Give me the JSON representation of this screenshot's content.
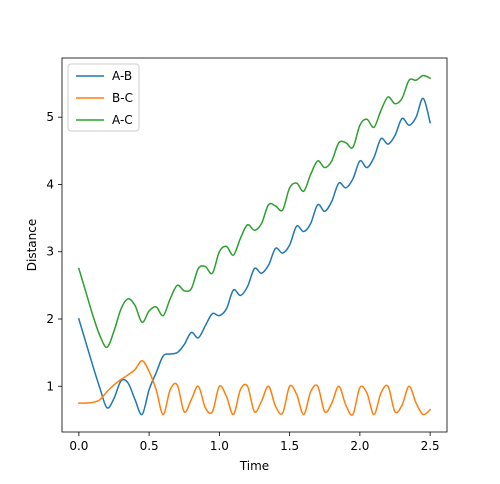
{
  "chart_data": {
    "type": "line",
    "title": "",
    "xlabel": "Time",
    "ylabel": "Distance",
    "xlim": [
      -0.12,
      2.62
    ],
    "ylim": [
      0.32,
      5.88
    ],
    "xticks": [
      0.0,
      0.5,
      1.0,
      1.5,
      2.0,
      2.5
    ],
    "xtick_labels": [
      "0.0",
      "0.5",
      "1.0",
      "1.5",
      "2.0",
      "2.5"
    ],
    "yticks": [
      1,
      2,
      3,
      4,
      5
    ],
    "ytick_labels": [
      "1",
      "2",
      "3",
      "4",
      "5"
    ],
    "grid": false,
    "legend": {
      "position": "top-left"
    },
    "series": [
      {
        "name": "A-B",
        "color": "#1f77b4",
        "points": [
          [
            0.0,
            2.0
          ],
          [
            0.05,
            1.65
          ],
          [
            0.1,
            1.3
          ],
          [
            0.15,
            0.97
          ],
          [
            0.2,
            0.68
          ],
          [
            0.25,
            0.82
          ],
          [
            0.3,
            1.08
          ],
          [
            0.35,
            1.05
          ],
          [
            0.4,
            0.8
          ],
          [
            0.45,
            0.58
          ],
          [
            0.5,
            0.95
          ],
          [
            0.55,
            1.2
          ],
          [
            0.6,
            1.45
          ],
          [
            0.65,
            1.48
          ],
          [
            0.7,
            1.5
          ],
          [
            0.75,
            1.62
          ],
          [
            0.8,
            1.8
          ],
          [
            0.85,
            1.72
          ],
          [
            0.9,
            1.9
          ],
          [
            0.95,
            2.08
          ],
          [
            1.0,
            2.05
          ],
          [
            1.05,
            2.15
          ],
          [
            1.1,
            2.43
          ],
          [
            1.15,
            2.35
          ],
          [
            1.2,
            2.48
          ],
          [
            1.25,
            2.75
          ],
          [
            1.3,
            2.68
          ],
          [
            1.35,
            2.8
          ],
          [
            1.4,
            3.05
          ],
          [
            1.45,
            2.98
          ],
          [
            1.5,
            3.1
          ],
          [
            1.55,
            3.38
          ],
          [
            1.6,
            3.3
          ],
          [
            1.65,
            3.42
          ],
          [
            1.7,
            3.7
          ],
          [
            1.75,
            3.6
          ],
          [
            1.8,
            3.75
          ],
          [
            1.85,
            4.02
          ],
          [
            1.9,
            3.95
          ],
          [
            1.95,
            4.08
          ],
          [
            2.0,
            4.35
          ],
          [
            2.05,
            4.25
          ],
          [
            2.1,
            4.4
          ],
          [
            2.15,
            4.68
          ],
          [
            2.2,
            4.6
          ],
          [
            2.25,
            4.73
          ],
          [
            2.3,
            4.98
          ],
          [
            2.35,
            4.88
          ],
          [
            2.4,
            5.0
          ],
          [
            2.45,
            5.28
          ],
          [
            2.5,
            4.92
          ]
        ]
      },
      {
        "name": "B-C",
        "color": "#ff7f0e",
        "points": [
          [
            0.0,
            0.75
          ],
          [
            0.05,
            0.75
          ],
          [
            0.1,
            0.76
          ],
          [
            0.15,
            0.8
          ],
          [
            0.2,
            0.92
          ],
          [
            0.25,
            1.02
          ],
          [
            0.3,
            1.1
          ],
          [
            0.35,
            1.17
          ],
          [
            0.4,
            1.25
          ],
          [
            0.45,
            1.38
          ],
          [
            0.5,
            1.22
          ],
          [
            0.55,
            0.95
          ],
          [
            0.6,
            0.58
          ],
          [
            0.65,
            0.95
          ],
          [
            0.7,
            1.02
          ],
          [
            0.75,
            0.62
          ],
          [
            0.8,
            0.8
          ],
          [
            0.85,
            1.0
          ],
          [
            0.9,
            0.68
          ],
          [
            0.95,
            0.62
          ],
          [
            1.0,
            1.0
          ],
          [
            1.05,
            0.85
          ],
          [
            1.1,
            0.58
          ],
          [
            1.15,
            0.95
          ],
          [
            1.2,
            1.0
          ],
          [
            1.25,
            0.62
          ],
          [
            1.3,
            0.78
          ],
          [
            1.35,
            1.0
          ],
          [
            1.4,
            0.7
          ],
          [
            1.45,
            0.6
          ],
          [
            1.5,
            1.0
          ],
          [
            1.55,
            0.88
          ],
          [
            1.6,
            0.58
          ],
          [
            1.65,
            0.92
          ],
          [
            1.7,
            1.0
          ],
          [
            1.75,
            0.62
          ],
          [
            1.8,
            0.75
          ],
          [
            1.85,
            1.0
          ],
          [
            1.9,
            0.72
          ],
          [
            1.95,
            0.58
          ],
          [
            2.0,
            0.98
          ],
          [
            2.05,
            0.9
          ],
          [
            2.1,
            0.58
          ],
          [
            2.15,
            0.9
          ],
          [
            2.2,
            1.0
          ],
          [
            2.25,
            0.62
          ],
          [
            2.3,
            0.72
          ],
          [
            2.35,
            1.0
          ],
          [
            2.4,
            0.75
          ],
          [
            2.45,
            0.58
          ],
          [
            2.5,
            0.65
          ]
        ]
      },
      {
        "name": "A-C",
        "color": "#2ca02c",
        "points": [
          [
            0.0,
            2.75
          ],
          [
            0.05,
            2.4
          ],
          [
            0.1,
            2.05
          ],
          [
            0.15,
            1.75
          ],
          [
            0.2,
            1.58
          ],
          [
            0.25,
            1.82
          ],
          [
            0.3,
            2.15
          ],
          [
            0.35,
            2.3
          ],
          [
            0.4,
            2.2
          ],
          [
            0.45,
            1.95
          ],
          [
            0.5,
            2.12
          ],
          [
            0.55,
            2.18
          ],
          [
            0.6,
            2.05
          ],
          [
            0.65,
            2.3
          ],
          [
            0.7,
            2.5
          ],
          [
            0.75,
            2.42
          ],
          [
            0.8,
            2.45
          ],
          [
            0.85,
            2.75
          ],
          [
            0.9,
            2.78
          ],
          [
            0.95,
            2.68
          ],
          [
            1.0,
            3.0
          ],
          [
            1.05,
            3.08
          ],
          [
            1.1,
            2.95
          ],
          [
            1.15,
            3.2
          ],
          [
            1.2,
            3.4
          ],
          [
            1.25,
            3.32
          ],
          [
            1.3,
            3.42
          ],
          [
            1.35,
            3.7
          ],
          [
            1.4,
            3.68
          ],
          [
            1.45,
            3.62
          ],
          [
            1.5,
            3.95
          ],
          [
            1.55,
            4.02
          ],
          [
            1.6,
            3.9
          ],
          [
            1.65,
            4.15
          ],
          [
            1.7,
            4.35
          ],
          [
            1.75,
            4.25
          ],
          [
            1.8,
            4.35
          ],
          [
            1.85,
            4.62
          ],
          [
            1.9,
            4.62
          ],
          [
            1.95,
            4.55
          ],
          [
            2.0,
            4.88
          ],
          [
            2.05,
            4.97
          ],
          [
            2.1,
            4.85
          ],
          [
            2.15,
            5.1
          ],
          [
            2.2,
            5.3
          ],
          [
            2.25,
            5.2
          ],
          [
            2.3,
            5.28
          ],
          [
            2.35,
            5.55
          ],
          [
            2.4,
            5.55
          ],
          [
            2.45,
            5.62
          ],
          [
            2.5,
            5.58
          ]
        ]
      }
    ]
  }
}
